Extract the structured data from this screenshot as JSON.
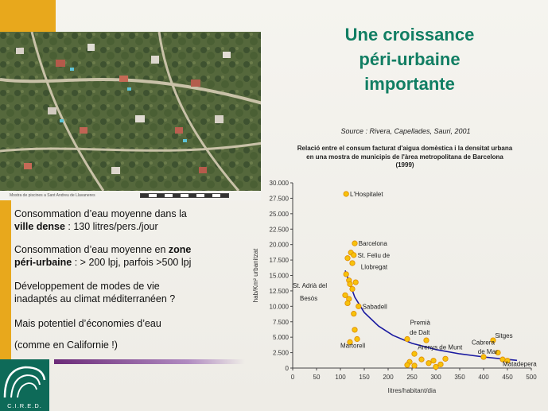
{
  "slide": {
    "title_line1": "Une croissance",
    "title_line2": "péri-urbaine",
    "title_line3": "importante",
    "source": "Source : Rivera, Capellades, Sauri, 2001",
    "image_caption": "Mostra de piscines a Sant Andreu de Llavaneres",
    "colors": {
      "accent_gold": "#e8a81c",
      "title_green": "#117e63",
      "purple": "#6b2a78",
      "logo_green": "#0e6a58",
      "dot_fill": "#f7c20c",
      "dot_stroke": "#e08a00",
      "curve": "#1a1aa0"
    },
    "text": {
      "p1_a": "Consommation d’eau moyenne dans la",
      "p1_b_bold": "ville dense",
      "p1_b_rest": " : 130 litres/pers./jour",
      "p2_a": "Consommation d’eau moyenne en ",
      "p2_a_bold": "zone",
      "p2_b_bold": "péri-urbaine",
      "p2_b_rest": " : > 200 lpj, parfois >500 lpj",
      "p3_a": "Développement de modes de vie",
      "p3_b": "inadaptés au climat méditerranéen ?",
      "p4": "Mais potentiel d’économies d’eau",
      "p5": "(comme en Californie !)"
    },
    "logo": {
      "text": "C.I.R.E.D.",
      "icon": "cired-wave-logo-icon"
    }
  },
  "chart_data": {
    "type": "scatter",
    "title_line1": "Relació entre el consum facturat d'aigua domèstica i la densitat urbana",
    "title_line2": "en una mostra de municipis de l'àrea metropolitana de Barcelona",
    "title_line3": "(1999)",
    "xlabel": "litres/habitant/dia",
    "ylabel": "hab/Km² urbanitzat",
    "xlim": [
      0,
      500
    ],
    "ylim": [
      0,
      30000
    ],
    "xticks": [
      "0",
      "50",
      "100",
      "150",
      "200",
      "250",
      "300",
      "350",
      "400",
      "450",
      "500"
    ],
    "yticks": [
      "0",
      "2.500",
      "5.000",
      "7.500",
      "10.000",
      "12.500",
      "15.000",
      "17.500",
      "20.000",
      "22.500",
      "25.000",
      "27.500",
      "30.000"
    ],
    "grid": false,
    "points": [
      [
        112,
        28200
      ],
      [
        130,
        20200
      ],
      [
        122,
        18700
      ],
      [
        128,
        18300
      ],
      [
        115,
        17800
      ],
      [
        125,
        17000
      ],
      [
        112,
        15200
      ],
      [
        118,
        14200
      ],
      [
        132,
        13900
      ],
      [
        120,
        13600
      ],
      [
        125,
        12800
      ],
      [
        110,
        11800
      ],
      [
        118,
        11200
      ],
      [
        138,
        10000
      ],
      [
        115,
        10500
      ],
      [
        128,
        8800
      ],
      [
        130,
        6200
      ],
      [
        135,
        4700
      ],
      [
        120,
        4200
      ],
      [
        240,
        4700
      ],
      [
        255,
        2300
      ],
      [
        245,
        1000
      ],
      [
        240,
        500
      ],
      [
        255,
        400
      ],
      [
        270,
        1400
      ],
      [
        280,
        4500
      ],
      [
        285,
        800
      ],
      [
        295,
        1200
      ],
      [
        300,
        200
      ],
      [
        310,
        600
      ],
      [
        320,
        1500
      ],
      [
        400,
        1800
      ],
      [
        420,
        4500
      ],
      [
        430,
        2500
      ],
      [
        440,
        1400
      ],
      [
        450,
        1200
      ]
    ],
    "curve": [
      [
        110,
        15800
      ],
      [
        130,
        11500
      ],
      [
        150,
        9000
      ],
      [
        180,
        6800
      ],
      [
        210,
        5300
      ],
      [
        250,
        4000
      ],
      [
        300,
        3000
      ],
      [
        350,
        2300
      ],
      [
        400,
        1800
      ],
      [
        450,
        1400
      ],
      [
        470,
        1250
      ]
    ],
    "annotations": [
      {
        "text": "L'Hospitalet",
        "x": 120,
        "y": 28200
      },
      {
        "text": "Barcelona",
        "x": 138,
        "y": 20200
      },
      {
        "text": "St. Feliu de",
        "x": 136,
        "y": 18300
      },
      {
        "text": "Llobregat",
        "x": 143,
        "y": 16400
      },
      {
        "text": "St. Adrià del",
        "x": 0,
        "y": 13400
      },
      {
        "text": "Besòs",
        "x": 15,
        "y": 11300
      },
      {
        "text": "Sabadell",
        "x": 146,
        "y": 10000
      },
      {
        "text": "Premià",
        "x": 246,
        "y": 7400
      },
      {
        "text": "de Dalt",
        "x": 245,
        "y": 5800
      },
      {
        "text": "Martorell",
        "x": 100,
        "y": 3700
      },
      {
        "text": "Arenys de Munt",
        "x": 262,
        "y": 3400
      },
      {
        "text": "Sitges",
        "x": 424,
        "y": 5300
      },
      {
        "text": "Cabrera",
        "x": 375,
        "y": 4200
      },
      {
        "text": "de Mar",
        "x": 388,
        "y": 2700
      },
      {
        "text": "Matadepera",
        "x": 440,
        "y": 700
      }
    ]
  }
}
